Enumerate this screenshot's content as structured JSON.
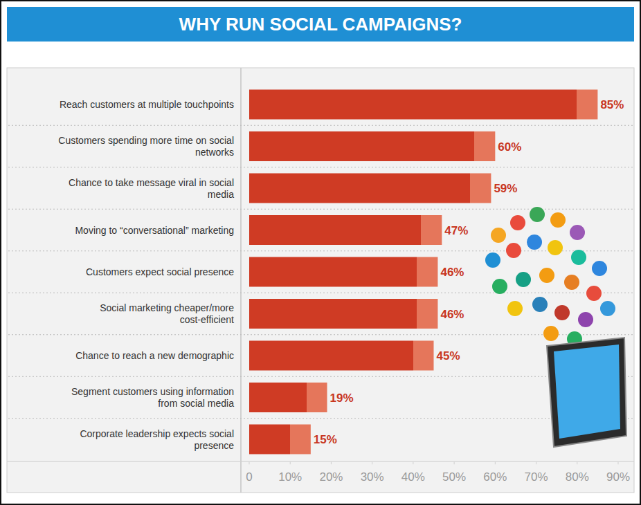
{
  "chart_data": {
    "type": "bar",
    "orientation": "horizontal",
    "title": "WHY RUN SOCIAL CAMPAIGNS?",
    "categories": [
      "Reach customers at multiple touchpoints",
      "Customers spending more time on social networks",
      "Chance to take message viral in social media",
      "Moving to “conversational” marketing",
      "Customers expect social presence",
      "Social marketing cheaper/more cost-efficient",
      "Chance to reach a new demographic",
      "Segment customers using information from social media",
      "Corporate leadership expects social presence"
    ],
    "values": [
      85,
      60,
      59,
      47,
      46,
      46,
      45,
      19,
      15
    ],
    "value_labels": [
      "85%",
      "60%",
      "59%",
      "47%",
      "46%",
      "46%",
      "45%",
      "19%",
      "15%"
    ],
    "data_labels": true,
    "color": "#cf3b24",
    "xlim": [
      0,
      90
    ],
    "xticks": [
      0,
      {
        "value": 10,
        "label": "10%"
      },
      {
        "value": 20,
        "label": "20%"
      },
      {
        "value": 30,
        "label": "30%"
      },
      {
        "value": 40,
        "label": "40%"
      },
      {
        "value": 50,
        "label": "50%"
      },
      {
        "value": 60,
        "label": "60%"
      },
      {
        "value": 70,
        "label": "70%"
      },
      {
        "value": 80,
        "label": "80%"
      },
      {
        "value": 90,
        "label": "90%"
      }
    ],
    "grid": false
  }
}
